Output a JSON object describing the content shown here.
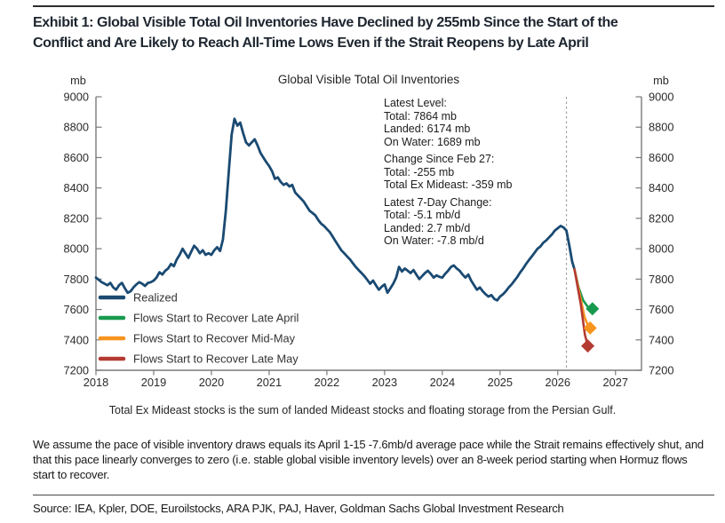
{
  "page": {
    "title_line1": "Exhibit 1: Global Visible Total Oil Inventories Have Declined by 255mb Since the Start of the",
    "title_line2": "Conflict and Are Likely to Reach All-Time Lows Even if the Strait Reopens by Late April",
    "footnote": "Total Ex Mideast stocks is the sum of landed Mideast stocks and floating storage from the Persian Gulf.",
    "assumption_note": "We assume the pace of visible inventory draws equals its April 1-15 -7.6mb/d average pace while the Strait remains effectively shut, and that this pace linearly converges to zero (i.e. stable global visible inventory levels) over an 8-week period starting when Hormuz flows start to recover.",
    "source": "Source: IEA, Kpler, DOE, Euroilstocks, ARA PJK, PAJ, Haver, Goldman Sachs Global Investment Research"
  },
  "annotation": {
    "groups": [
      {
        "lines": [
          "Latest Level:",
          "Total: 7864 mb",
          "Landed: 6174 mb",
          "On Water: 1689 mb"
        ]
      },
      {
        "lines": [
          "Change Since Feb 27:",
          "Total: -255 mb",
          "Total Ex Mideast: -359 mb"
        ]
      },
      {
        "lines": [
          "Latest 7-Day Change:",
          "Total: -5.1 mb/d",
          "Landed: 2.7 mb/d",
          "On Water: -7.8 mb/d"
        ]
      }
    ]
  },
  "chart_data": {
    "type": "line",
    "title": "Global Visible Total Oil Inventories",
    "ylabel_left": "mb",
    "ylabel_right": "mb",
    "ylim": [
      7200,
      9000
    ],
    "ytick_step": 200,
    "xlim": [
      2018,
      2027.45
    ],
    "xticks": [
      2018,
      2019,
      2020,
      2021,
      2022,
      2023,
      2024,
      2025,
      2026,
      2027
    ],
    "grid": false,
    "event_line_x": 2026.15,
    "axis_color": "#7a7a7a",
    "event_line_color": "#a0a0a0",
    "realized": {
      "label": "Realized",
      "color": "#1a4a72",
      "x_start": 2018.0,
      "x_step": 0.05,
      "values": [
        7810,
        7795,
        7780,
        7770,
        7760,
        7775,
        7745,
        7730,
        7760,
        7775,
        7740,
        7710,
        7720,
        7745,
        7765,
        7780,
        7770,
        7755,
        7775,
        7780,
        7790,
        7810,
        7845,
        7830,
        7855,
        7870,
        7900,
        7885,
        7930,
        7960,
        8000,
        7970,
        7940,
        7980,
        8020,
        8000,
        7970,
        7990,
        7960,
        7970,
        7960,
        7990,
        8010,
        7985,
        8060,
        8250,
        8500,
        8750,
        8855,
        8810,
        8830,
        8760,
        8700,
        8680,
        8700,
        8720,
        8680,
        8630,
        8600,
        8570,
        8545,
        8510,
        8460,
        8470,
        8440,
        8420,
        8430,
        8410,
        8420,
        8370,
        8350,
        8330,
        8310,
        8280,
        8250,
        8235,
        8220,
        8190,
        8165,
        8150,
        8130,
        8110,
        8080,
        8050,
        8020,
        7990,
        7970,
        7950,
        7930,
        7905,
        7880,
        7860,
        7840,
        7820,
        7795,
        7770,
        7790,
        7760,
        7730,
        7750,
        7765,
        7710,
        7740,
        7770,
        7810,
        7880,
        7850,
        7870,
        7855,
        7840,
        7860,
        7830,
        7800,
        7820,
        7840,
        7855,
        7835,
        7810,
        7825,
        7815,
        7810,
        7835,
        7855,
        7880,
        7890,
        7870,
        7855,
        7830,
        7810,
        7830,
        7790,
        7760,
        7730,
        7745,
        7720,
        7700,
        7685,
        7695,
        7670,
        7660,
        7685,
        7700,
        7720,
        7745,
        7765,
        7790,
        7815,
        7845,
        7870,
        7900,
        7925,
        7950,
        7975,
        8000,
        8015,
        8040,
        8055,
        8075,
        8095,
        8120,
        8135,
        8150,
        8140,
        8119,
        8020,
        7915
      ],
      "end_point": [
        2026.29,
        7864
      ]
    },
    "forecasts": [
      {
        "label": "Flows Start to Recover Late April",
        "color": "#189a4e",
        "points": [
          [
            2026.29,
            7864
          ],
          [
            2026.36,
            7745
          ],
          [
            2026.44,
            7660
          ],
          [
            2026.52,
            7617
          ],
          [
            2026.6,
            7605
          ]
        ]
      },
      {
        "label": "Flows Start to Recover Mid-May",
        "color": "#f7941e",
        "points": [
          [
            2026.29,
            7864
          ],
          [
            2026.38,
            7700
          ],
          [
            2026.46,
            7555
          ],
          [
            2026.52,
            7496
          ],
          [
            2026.56,
            7478
          ]
        ]
      },
      {
        "label": "Flows Start to Recover Late May",
        "color": "#b43a31",
        "points": [
          [
            2026.29,
            7864
          ],
          [
            2026.4,
            7630
          ],
          [
            2026.47,
            7435
          ],
          [
            2026.52,
            7360
          ]
        ]
      }
    ]
  }
}
